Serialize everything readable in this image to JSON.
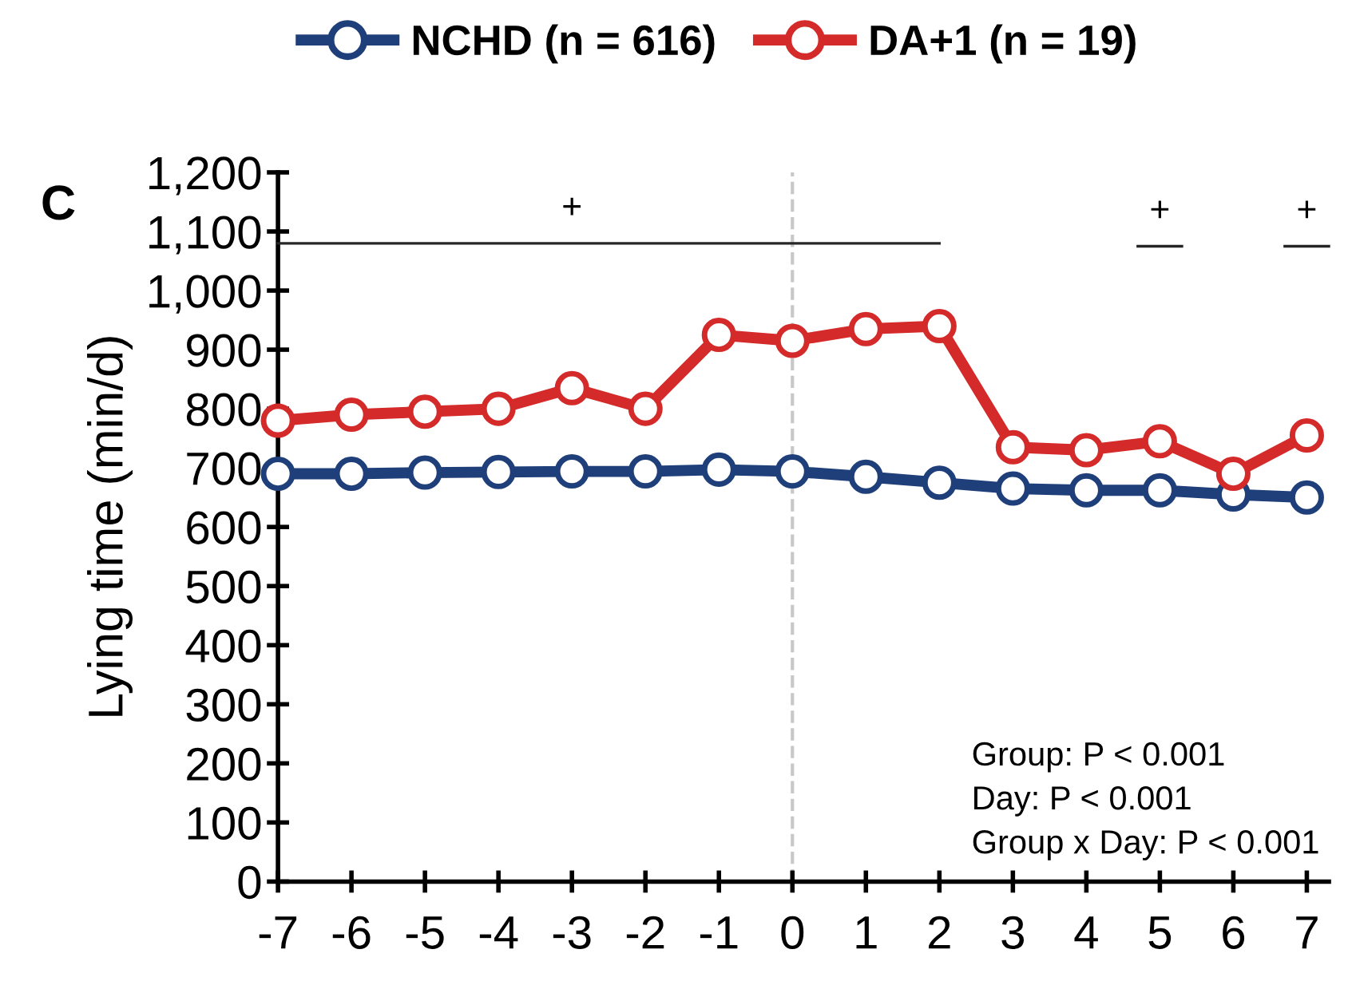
{
  "chart_data": {
    "type": "line",
    "ylabel": "Lying time (min/d)",
    "x": [
      -7,
      -6,
      -5,
      -4,
      -3,
      -2,
      -1,
      0,
      1,
      2,
      3,
      4,
      5,
      6,
      7
    ],
    "series": [
      {
        "name": "NCHD (n = 616)",
        "color": "#1f3f7a",
        "values": [
          690,
          690,
          692,
          693,
          694,
          694,
          697,
          694,
          685,
          675,
          665,
          662,
          662,
          655,
          650
        ]
      },
      {
        "name": "DA+1 (n = 19)",
        "color": "#d42a2a",
        "values": [
          780,
          790,
          795,
          800,
          835,
          800,
          925,
          915,
          935,
          940,
          735,
          730,
          745,
          690,
          755
        ]
      },
      {
        "color": "#262626",
        "x": [
          -7,
          2
        ],
        "values": [
          1080,
          1080
        ],
        "marker": "none"
      },
      {
        "color": "#262626",
        "x": [
          4.7,
          5.3
        ],
        "values": [
          1075,
          1075
        ],
        "marker": "none"
      },
      {
        "color": "#262626",
        "x": [
          6.7,
          7.3
        ],
        "values": [
          1075,
          1075
        ],
        "marker": "none"
      }
    ],
    "xlim": [
      -7,
      7.3
    ],
    "xticks": [
      -7,
      -6,
      -5,
      -4,
      -3,
      -2,
      -1,
      0,
      1,
      2,
      3,
      4,
      5,
      6,
      7
    ],
    "ylim": [
      0,
      1200
    ],
    "yticks": [
      {
        "value": 0,
        "label": "0"
      },
      {
        "value": 100,
        "label": "100"
      },
      {
        "value": 200,
        "label": "200"
      },
      {
        "value": 300,
        "label": "300"
      },
      {
        "value": 400,
        "label": "400"
      },
      {
        "value": 500,
        "label": "500"
      },
      {
        "value": 600,
        "label": "600"
      },
      {
        "value": 700,
        "label": "700"
      },
      {
        "value": 800,
        "label": "800"
      },
      {
        "value": 900,
        "label": "900"
      },
      {
        "value": 1000,
        "label": "1,000"
      },
      {
        "value": 1100,
        "label": "1,100"
      },
      {
        "value": 1200,
        "label": "1,200"
      }
    ],
    "ref_lines": [
      {
        "axis": "x",
        "value": 0,
        "color": "#c8c8c8",
        "line_style": "dashed"
      }
    ],
    "annotations": [
      "C",
      {
        "text": "+",
        "x": -3,
        "y": 1080
      },
      {
        "text": "+",
        "x": 5,
        "y": 1075
      },
      {
        "text": "+",
        "x": 7,
        "y": 1075
      },
      "Group: P < 0.001",
      "Day: P < 0.001",
      "Group x Day: P < 0.001"
    ],
    "marker": "circle",
    "line_style": "solid",
    "grid": false,
    "legend": "top"
  }
}
